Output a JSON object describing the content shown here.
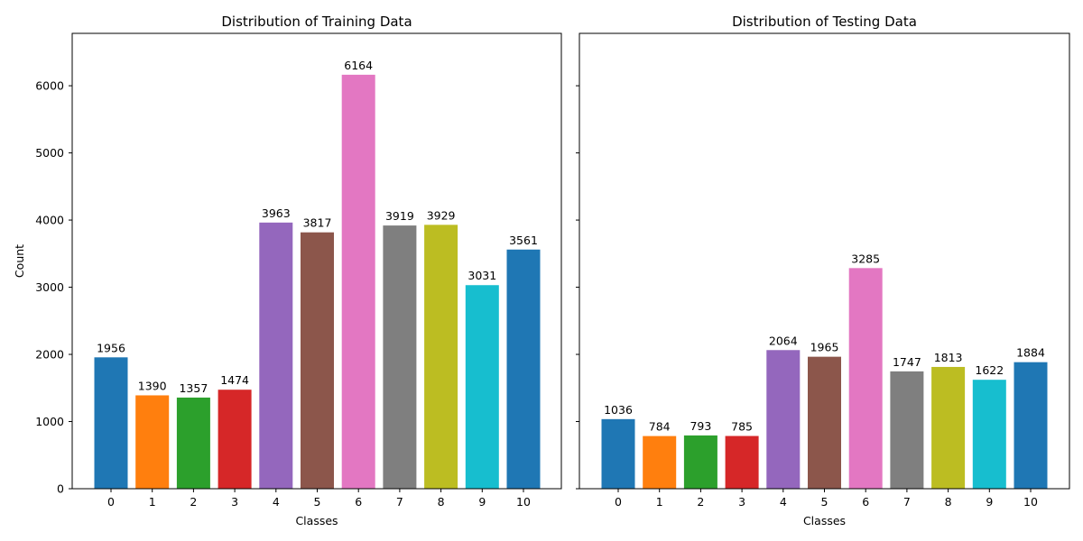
{
  "palette": [
    "#1f77b4",
    "#ff7f0e",
    "#2ca02c",
    "#d62728",
    "#9467bd",
    "#8c564b",
    "#e377c2",
    "#7f7f7f",
    "#bcbd22",
    "#17becf",
    "#1f77b4"
  ],
  "chart_data": [
    {
      "type": "bar",
      "title": "Distribution of Training Data",
      "xlabel": "Classes",
      "ylabel": "Count",
      "categories": [
        "0",
        "1",
        "2",
        "3",
        "4",
        "5",
        "6",
        "7",
        "8",
        "9",
        "10"
      ],
      "values": [
        1956,
        1390,
        1357,
        1474,
        3963,
        3817,
        6164,
        3919,
        3929,
        3031,
        3561
      ],
      "ylim": [
        0,
        6780
      ],
      "yticks": [
        0,
        1000,
        2000,
        3000,
        4000,
        5000,
        6000
      ],
      "show_ytick_labels": true,
      "grid": false,
      "legend": "none"
    },
    {
      "type": "bar",
      "title": "Distribution of Testing Data",
      "xlabel": "Classes",
      "ylabel": "",
      "categories": [
        "0",
        "1",
        "2",
        "3",
        "4",
        "5",
        "6",
        "7",
        "8",
        "9",
        "10"
      ],
      "values": [
        1036,
        784,
        793,
        785,
        2064,
        1965,
        3285,
        1747,
        1813,
        1622,
        1884
      ],
      "ylim": [
        0,
        6780
      ],
      "yticks": [
        0,
        1000,
        2000,
        3000,
        4000,
        5000,
        6000
      ],
      "show_ytick_labels": false,
      "grid": false,
      "legend": "none"
    }
  ]
}
